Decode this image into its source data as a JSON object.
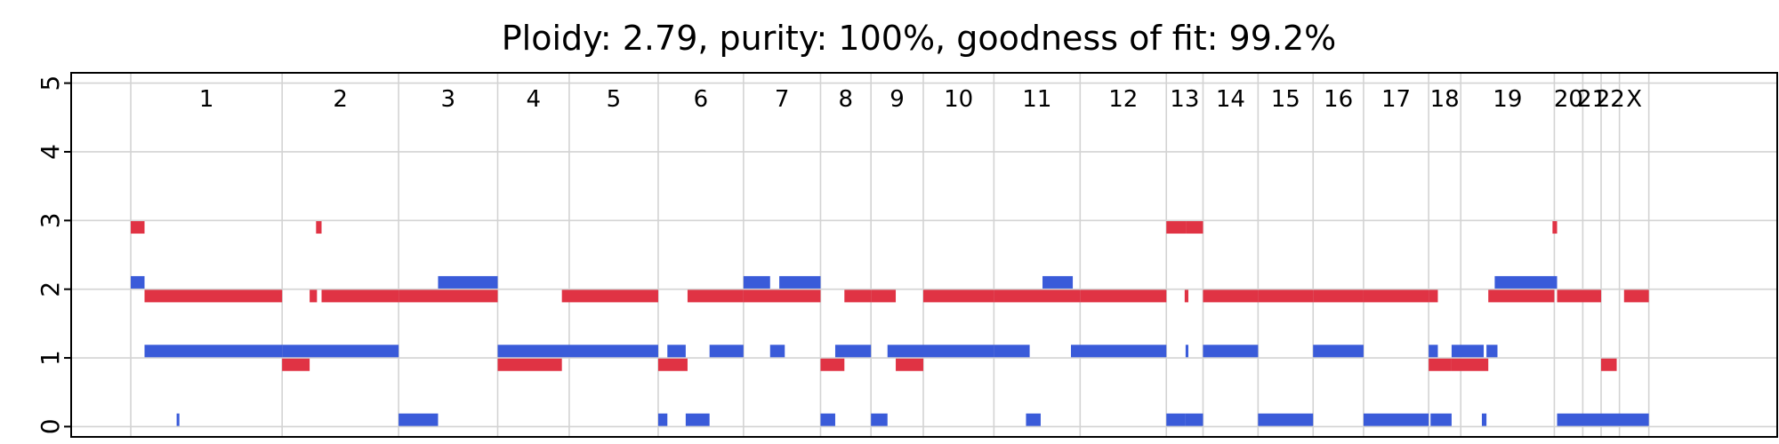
{
  "chart_data": {
    "type": "segment",
    "title": "Ploidy: 2.79, purity: 100%, goodness of fit: 99.2%",
    "xlabel": "",
    "ylabel": "",
    "ylim": [
      -0.15,
      5.15
    ],
    "xlim": [
      0,
      186
    ],
    "yticks": [
      0,
      1,
      2,
      3,
      4,
      5
    ],
    "grid": true,
    "colors": {
      "major": "#E03344",
      "minor": "#3A5BD9",
      "grid": "#D3D3D3"
    },
    "chromosomes": [
      {
        "name": "1",
        "start": 6.5,
        "end": 23.0
      },
      {
        "name": "2",
        "start": 23.0,
        "end": 35.7
      },
      {
        "name": "3",
        "start": 35.7,
        "end": 46.5
      },
      {
        "name": "4",
        "start": 46.5,
        "end": 54.3
      },
      {
        "name": "5",
        "start": 54.3,
        "end": 64.0
      },
      {
        "name": "6",
        "start": 64.0,
        "end": 73.3
      },
      {
        "name": "7",
        "start": 73.3,
        "end": 81.7
      },
      {
        "name": "8",
        "start": 81.7,
        "end": 87.2
      },
      {
        "name": "9",
        "start": 87.2,
        "end": 92.9
      },
      {
        "name": "10",
        "start": 92.9,
        "end": 100.6
      },
      {
        "name": "11",
        "start": 100.6,
        "end": 110.0
      },
      {
        "name": "12",
        "start": 110.0,
        "end": 119.4
      },
      {
        "name": "13",
        "start": 119.4,
        "end": 123.4
      },
      {
        "name": "14",
        "start": 123.4,
        "end": 129.4
      },
      {
        "name": "15",
        "start": 129.4,
        "end": 135.4
      },
      {
        "name": "16",
        "start": 135.4,
        "end": 140.9
      },
      {
        "name": "17",
        "start": 140.9,
        "end": 148.0
      },
      {
        "name": "18",
        "start": 148.0,
        "end": 151.5
      },
      {
        "name": "19",
        "start": 151.5,
        "end": 161.7
      },
      {
        "name": "20",
        "start": 161.7,
        "end": 164.8
      },
      {
        "name": "21",
        "start": 164.8,
        "end": 166.8
      },
      {
        "name": "22",
        "start": 166.8,
        "end": 168.8
      },
      {
        "name": "X",
        "start": 168.8,
        "end": 172.0
      }
    ],
    "series": [
      {
        "color": "#E03344",
        "segments": [
          {
            "x0": 6.5,
            "x1": 8.0,
            "y": 2.9
          },
          {
            "x0": 8.0,
            "x1": 23.0,
            "y": 1.9
          },
          {
            "x0": 23.0,
            "x1": 26.0,
            "y": 0.9
          },
          {
            "x0": 26.0,
            "x1": 26.8,
            "y": 1.9
          },
          {
            "x0": 26.7,
            "x1": 27.3,
            "y": 2.9
          },
          {
            "x0": 27.3,
            "x1": 35.7,
            "y": 1.9
          },
          {
            "x0": 35.7,
            "x1": 46.5,
            "y": 1.9
          },
          {
            "x0": 46.5,
            "x1": 53.5,
            "y": 0.9
          },
          {
            "x0": 53.5,
            "x1": 64.0,
            "y": 1.9
          },
          {
            "x0": 64.0,
            "x1": 67.2,
            "y": 0.9
          },
          {
            "x0": 67.2,
            "x1": 73.3,
            "y": 1.9
          },
          {
            "x0": 73.3,
            "x1": 81.7,
            "y": 1.9
          },
          {
            "x0": 81.7,
            "x1": 84.3,
            "y": 0.9
          },
          {
            "x0": 84.3,
            "x1": 87.2,
            "y": 1.9
          },
          {
            "x0": 87.2,
            "x1": 89.9,
            "y": 1.9
          },
          {
            "x0": 89.9,
            "x1": 92.9,
            "y": 0.9
          },
          {
            "x0": 92.9,
            "x1": 100.6,
            "y": 1.9
          },
          {
            "x0": 100.6,
            "x1": 110.0,
            "y": 1.9
          },
          {
            "x0": 110.0,
            "x1": 119.4,
            "y": 1.9
          },
          {
            "x0": 119.4,
            "x1": 121.6,
            "y": 2.9
          },
          {
            "x0": 121.4,
            "x1": 121.8,
            "y": 1.9
          },
          {
            "x0": 121.6,
            "x1": 123.4,
            "y": 2.9
          },
          {
            "x0": 123.4,
            "x1": 129.4,
            "y": 1.9
          },
          {
            "x0": 129.4,
            "x1": 135.4,
            "y": 1.9
          },
          {
            "x0": 135.4,
            "x1": 140.9,
            "y": 1.9
          },
          {
            "x0": 140.9,
            "x1": 148.0,
            "y": 1.9
          },
          {
            "x0": 148.0,
            "x1": 149.0,
            "y": 1.9
          },
          {
            "x0": 148.0,
            "x1": 150.5,
            "y": 0.9
          },
          {
            "x0": 150.5,
            "x1": 154.5,
            "y": 0.9
          },
          {
            "x0": 154.5,
            "x1": 161.7,
            "y": 1.9
          },
          {
            "x0": 161.5,
            "x1": 162.0,
            "y": 2.9
          },
          {
            "x0": 162.0,
            "x1": 166.8,
            "y": 1.9
          },
          {
            "x0": 166.8,
            "x1": 168.5,
            "y": 0.9
          },
          {
            "x0": 169.3,
            "x1": 172.0,
            "y": 1.9
          }
        ]
      },
      {
        "color": "#3A5BD9",
        "segments": [
          {
            "x0": 6.5,
            "x1": 8.0,
            "y": 2.1
          },
          {
            "x0": 8.0,
            "x1": 23.0,
            "y": 1.1
          },
          {
            "x0": 11.5,
            "x1": 11.8,
            "y": 0.1
          },
          {
            "x0": 23.0,
            "x1": 35.7,
            "y": 1.1
          },
          {
            "x0": 35.7,
            "x1": 40.0,
            "y": 0.1
          },
          {
            "x0": 40.0,
            "x1": 46.5,
            "y": 2.1
          },
          {
            "x0": 46.5,
            "x1": 64.0,
            "y": 1.1
          },
          {
            "x0": 64.0,
            "x1": 65.0,
            "y": 0.1
          },
          {
            "x0": 65.0,
            "x1": 67.0,
            "y": 1.1
          },
          {
            "x0": 67.0,
            "x1": 69.6,
            "y": 0.1
          },
          {
            "x0": 69.6,
            "x1": 73.3,
            "y": 1.1
          },
          {
            "x0": 73.3,
            "x1": 76.2,
            "y": 2.1
          },
          {
            "x0": 76.2,
            "x1": 77.8,
            "y": 1.1
          },
          {
            "x0": 77.2,
            "x1": 81.7,
            "y": 2.1
          },
          {
            "x0": 81.7,
            "x1": 83.3,
            "y": 0.1
          },
          {
            "x0": 83.3,
            "x1": 87.2,
            "y": 1.1
          },
          {
            "x0": 87.2,
            "x1": 89.0,
            "y": 0.1
          },
          {
            "x0": 89.0,
            "x1": 100.6,
            "y": 1.1
          },
          {
            "x0": 100.6,
            "x1": 104.5,
            "y": 1.1
          },
          {
            "x0": 104.1,
            "x1": 105.7,
            "y": 0.1
          },
          {
            "x0": 105.9,
            "x1": 109.2,
            "y": 2.1
          },
          {
            "x0": 109.0,
            "x1": 119.4,
            "y": 1.1
          },
          {
            "x0": 119.4,
            "x1": 121.5,
            "y": 0.1
          },
          {
            "x0": 121.5,
            "x1": 121.8,
            "y": 1.1
          },
          {
            "x0": 121.5,
            "x1": 123.4,
            "y": 0.1
          },
          {
            "x0": 123.4,
            "x1": 129.4,
            "y": 1.1
          },
          {
            "x0": 129.4,
            "x1": 135.4,
            "y": 0.1
          },
          {
            "x0": 135.4,
            "x1": 140.9,
            "y": 1.1
          },
          {
            "x0": 140.9,
            "x1": 148.0,
            "y": 0.1
          },
          {
            "x0": 148.0,
            "x1": 149.0,
            "y": 1.1
          },
          {
            "x0": 148.2,
            "x1": 150.5,
            "y": 0.1
          },
          {
            "x0": 150.5,
            "x1": 154.0,
            "y": 1.1
          },
          {
            "x0": 153.8,
            "x1": 154.3,
            "y": 0.1
          },
          {
            "x0": 154.3,
            "x1": 155.5,
            "y": 1.1
          },
          {
            "x0": 155.2,
            "x1": 162.0,
            "y": 2.1
          },
          {
            "x0": 162.0,
            "x1": 172.0,
            "y": 0.1
          }
        ]
      }
    ]
  }
}
